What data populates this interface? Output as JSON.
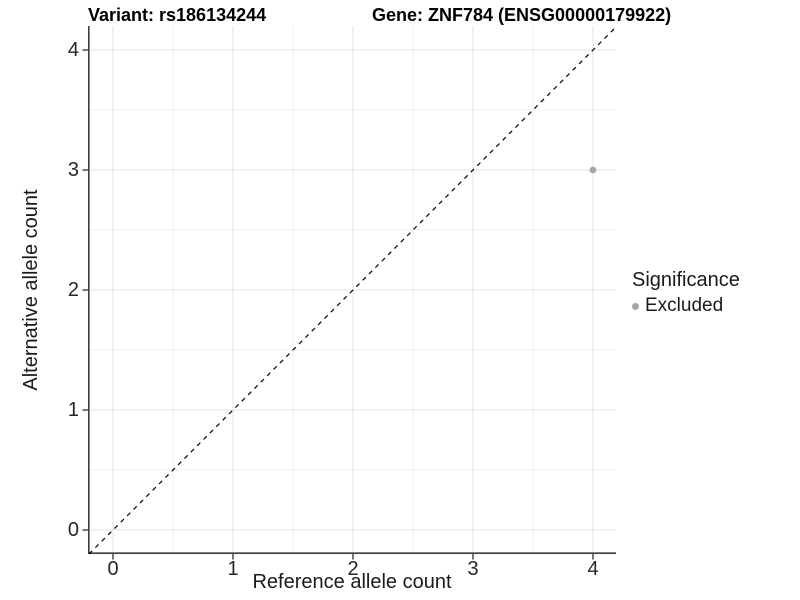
{
  "header": {
    "variant_title": "Variant: rs186134244",
    "gene_title": "Gene: ZNF784 (ENSG00000179922)"
  },
  "axes": {
    "x": {
      "label": "Reference allele count",
      "tick_labels": [
        "0",
        "1",
        "2",
        "3",
        "4"
      ]
    },
    "y": {
      "label": "Alternative allele count",
      "tick_labels": [
        "0",
        "1",
        "2",
        "3",
        "4"
      ]
    }
  },
  "legend": {
    "title": "Significance",
    "items": [
      {
        "label": "Excluded",
        "color": "#a6a6a6"
      }
    ]
  },
  "chart_data": {
    "type": "scatter",
    "title": "Variant: rs186134244 — Gene: ZNF784 (ENSG00000179922)",
    "xlabel": "Reference allele count",
    "ylabel": "Alternative allele count",
    "xlim": [
      -0.2,
      4.2
    ],
    "ylim": [
      -0.2,
      4.2
    ],
    "x_ticks": [
      0,
      1,
      2,
      3,
      4
    ],
    "y_ticks": [
      0,
      1,
      2,
      3,
      4
    ],
    "minor_ticks": [
      0.5,
      1.5,
      2.5,
      3.5
    ],
    "grid": {
      "major": true,
      "minor": true
    },
    "series": [
      {
        "name": "Excluded",
        "color": "#a6a6a6",
        "points": [
          {
            "x": 4,
            "y": 3
          }
        ]
      }
    ],
    "reference_line": {
      "description": "identity line y = x",
      "from": [
        -0.2,
        -0.2
      ],
      "to": [
        4.2,
        4.2
      ],
      "style": "dashed",
      "color": "#000000"
    },
    "legend_position": "right",
    "colors": {
      "major_grid": "#e3e3e3",
      "minor_grid": "#f0f0f0",
      "axis_line": "#3c3c3c",
      "point": "#a6a6a6"
    }
  }
}
